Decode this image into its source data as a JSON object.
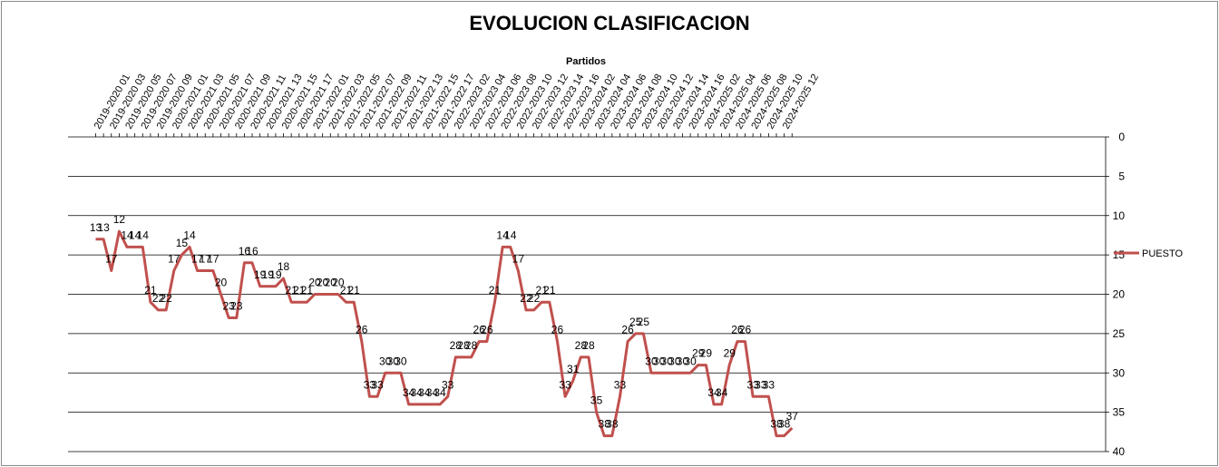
{
  "chart_data": {
    "type": "line",
    "title": "EVOLUCION CLASIFICACION",
    "xlabel": "Partidos",
    "ylabel": "",
    "ylim": [
      0,
      40
    ],
    "y_reversed": true,
    "y_axis_side": "right",
    "y_ticks": [
      0,
      5,
      10,
      15,
      20,
      25,
      30,
      35,
      40
    ],
    "grid": "horizontal",
    "legend_position": "right",
    "x_tick_labels": [
      "2019-2020 01",
      "2019-2020 03",
      "2019-2020 05",
      "2019-2020 07",
      "2019-2020 09",
      "2020-2021 01",
      "2020-2021 03",
      "2020-2021 05",
      "2020-2021 07",
      "2020-2021 09",
      "2020-2021 11",
      "2020-2021 13",
      "2020-2021 15",
      "2020-2021 17",
      "2021-2022 01",
      "2021-2022 03",
      "2021-2022 05",
      "2021-2022 07",
      "2021-2022 09",
      "2021-2022 11",
      "2021-2022 13",
      "2021-2022 15",
      "2021-2022 17",
      "2022-2023 02",
      "2022-2023 04",
      "2022-2023 06",
      "2022-2023 08",
      "2022-2023 10",
      "2022-2023 12",
      "2022-2023 14",
      "2022-2023 16",
      "2023-2024 02",
      "2023-2024 04",
      "2023-2024 06",
      "2023-2024 08",
      "2023-2024 10",
      "2023-2024 12",
      "2023-2024 14",
      "2023-2024 16",
      "2024-2025 02",
      "2024-2025 04",
      "2024-2025 06",
      "2024-2025 08",
      "2024-2025 10",
      "2024-2025 12"
    ],
    "series": [
      {
        "name": "PUESTO",
        "color": "#C0504D",
        "values": [
          13,
          13,
          17,
          12,
          14,
          14,
          14,
          21,
          22,
          22,
          17,
          15,
          14,
          17,
          17,
          17,
          20,
          23,
          23,
          16,
          16,
          19,
          19,
          19,
          18,
          21,
          21,
          21,
          20,
          20,
          20,
          20,
          21,
          21,
          26,
          33,
          33,
          30,
          30,
          30,
          34,
          34,
          34,
          34,
          34,
          33,
          28,
          28,
          28,
          26,
          26,
          21,
          14,
          14,
          17,
          22,
          22,
          21,
          21,
          26,
          33,
          31,
          28,
          28,
          35,
          38,
          38,
          33,
          26,
          25,
          25,
          30,
          30,
          30,
          30,
          30,
          30,
          29,
          29,
          34,
          34,
          29,
          26,
          26,
          33,
          33,
          33,
          38,
          38,
          37
        ]
      }
    ]
  }
}
